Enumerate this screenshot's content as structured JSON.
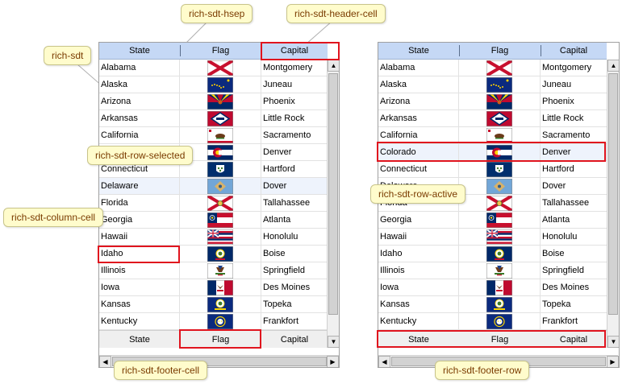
{
  "columns": {
    "state": "State",
    "flag": "Flag",
    "capital": "Capital"
  },
  "rows": [
    {
      "state": "Alabama",
      "capital": "Montgomery",
      "flag": "alabama-flag"
    },
    {
      "state": "Alaska",
      "capital": "Juneau",
      "flag": "alaska-flag"
    },
    {
      "state": "Arizona",
      "capital": "Phoenix",
      "flag": "arizona-flag"
    },
    {
      "state": "Arkansas",
      "capital": "Little Rock",
      "flag": "arkansas-flag"
    },
    {
      "state": "California",
      "capital": "Sacramento",
      "flag": "california-flag"
    },
    {
      "state": "Colorado",
      "capital": "Denver",
      "flag": "colorado-flag"
    },
    {
      "state": "Connecticut",
      "capital": "Hartford",
      "flag": "connecticut-flag"
    },
    {
      "state": "Delaware",
      "capital": "Dover",
      "flag": "delaware-flag"
    },
    {
      "state": "Florida",
      "capital": "Tallahassee",
      "flag": "florida-flag"
    },
    {
      "state": "Georgia",
      "capital": "Atlanta",
      "flag": "georgia-flag"
    },
    {
      "state": "Hawaii",
      "capital": "Honolulu",
      "flag": "hawaii-flag"
    },
    {
      "state": "Idaho",
      "capital": "Boise",
      "flag": "idaho-flag"
    },
    {
      "state": "Illinois",
      "capital": "Springfield",
      "flag": "illinois-flag"
    },
    {
      "state": "Iowa",
      "capital": "Des Moines",
      "flag": "iowa-flag"
    },
    {
      "state": "Kansas",
      "capital": "Topeka",
      "flag": "kansas-flag"
    },
    {
      "state": "Kentucky",
      "capital": "Frankfort",
      "flag": "kentucky-flag"
    }
  ],
  "footer": {
    "state": "State",
    "flag": "Flag",
    "capital": "Capital"
  },
  "left_table": {
    "selected_row": "Delaware"
  },
  "right_table": {
    "active_row": "Colorado"
  },
  "annotations": {
    "hsep": "rich-sdt-hsep",
    "header_cell": "rich-sdt-header-cell",
    "sdt": "rich-sdt",
    "row_selected": "rich-sdt-row-selected",
    "column_cell": "rich-sdt-column-cell",
    "footer_cell": "rich-sdt-footer-cell",
    "row_active": "rich-sdt-row-active",
    "footer_row": "rich-sdt-footer-row"
  },
  "colors": {
    "header_bg": "#c5d8f5",
    "highlight_bg": "#eef3fc",
    "annotation_bg": "#fffccc",
    "annotation_text": "#7a3b00",
    "annotation_border": "#e0141e"
  },
  "icons": {
    "scroll_up": "▲",
    "scroll_down": "▼",
    "scroll_left": "◀",
    "scroll_right": "▶"
  }
}
